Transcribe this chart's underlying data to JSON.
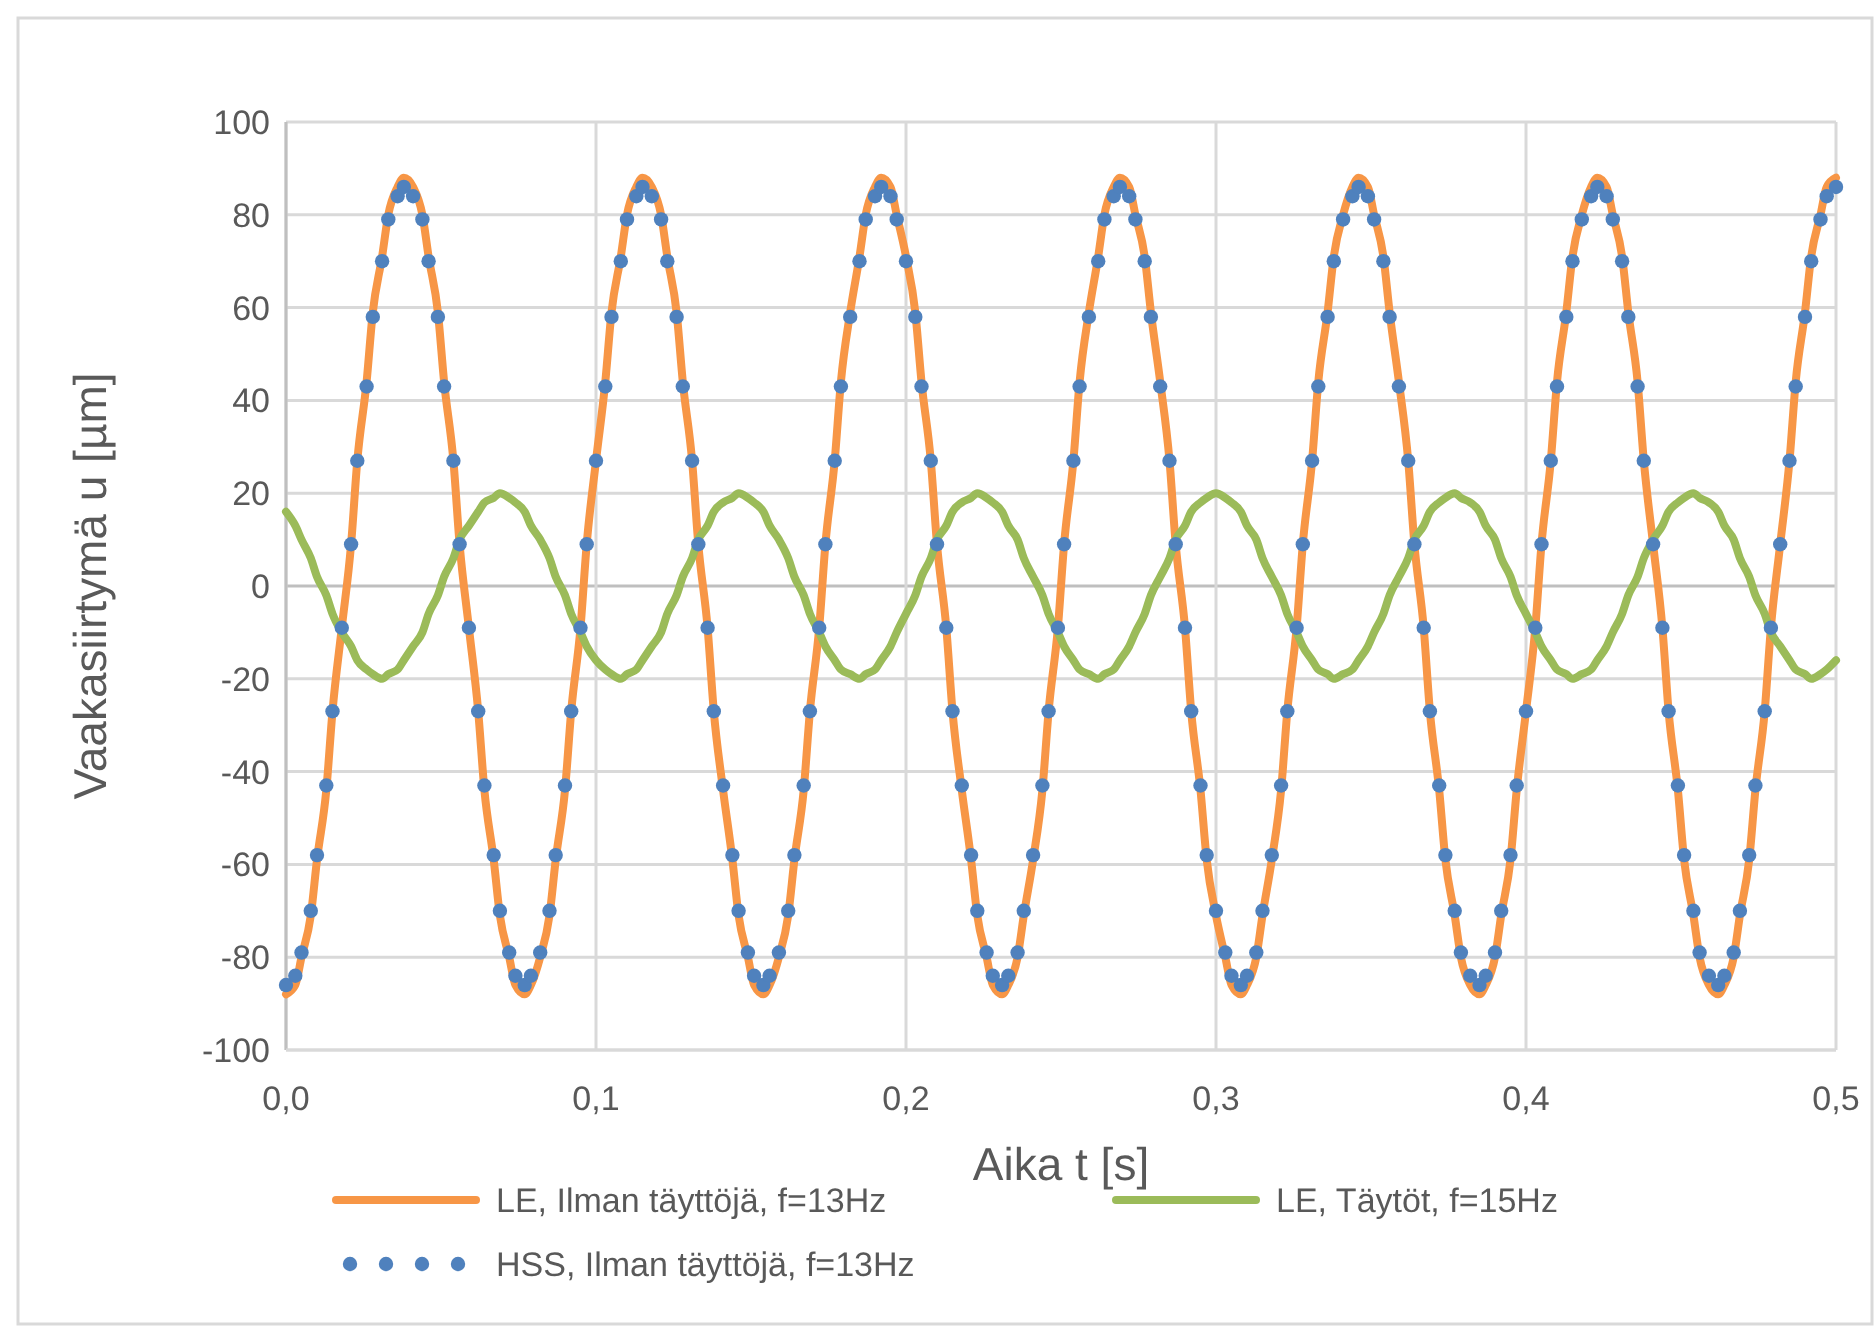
{
  "chart_data": {
    "type": "line",
    "xlabel": "Aika t [s]",
    "ylabel": "Vaakasiirtymä u [µm]",
    "xlim": [
      0,
      0.5
    ],
    "ylim": [
      -100,
      100
    ],
    "xticks": [
      {
        "value": 0,
        "label": "0,0"
      },
      {
        "value": 0.1,
        "label": "0,1"
      },
      {
        "value": 0.2,
        "label": "0,2"
      },
      {
        "value": 0.3,
        "label": "0,3"
      },
      {
        "value": 0.4,
        "label": "0,4"
      },
      {
        "value": 0.5,
        "label": "0,5"
      }
    ],
    "yticks": [
      -100,
      -80,
      -60,
      -40,
      -20,
      0,
      20,
      40,
      60,
      80,
      100
    ],
    "grid": true,
    "legend": "bottom",
    "line_style": "solid",
    "x": [
      0,
      0.003,
      0.005,
      0.008,
      0.01,
      0.013,
      0.015,
      0.018,
      0.021,
      0.023,
      0.026,
      0.028,
      0.031,
      0.033,
      0.036,
      0.038,
      0.041,
      0.044,
      0.046,
      0.049,
      0.051,
      0.054,
      0.056,
      0.059,
      0.062,
      0.064,
      0.067,
      0.069,
      0.072,
      0.074,
      0.077,
      0.079,
      0.082,
      0.085,
      0.087,
      0.09,
      0.092,
      0.095,
      0.097,
      0.1,
      0.103,
      0.105,
      0.108,
      0.11,
      0.113,
      0.115,
      0.118,
      0.121,
      0.123,
      0.126,
      0.128,
      0.131,
      0.133,
      0.136,
      0.138,
      0.141,
      0.144,
      0.146,
      0.149,
      0.151,
      0.154,
      0.156,
      0.159,
      0.162,
      0.164,
      0.167,
      0.169,
      0.172,
      0.174,
      0.177,
      0.179,
      0.182,
      0.185,
      0.187,
      0.19,
      0.192,
      0.195,
      0.197,
      0.2,
      0.203,
      0.205,
      0.208,
      0.21,
      0.213,
      0.215,
      0.218,
      0.221,
      0.223,
      0.226,
      0.228,
      0.231,
      0.233,
      0.236,
      0.238,
      0.241,
      0.244,
      0.246,
      0.249,
      0.251,
      0.254,
      0.256,
      0.259,
      0.262,
      0.264,
      0.267,
      0.269,
      0.272,
      0.274,
      0.277,
      0.279,
      0.282,
      0.285,
      0.287,
      0.29,
      0.292,
      0.295,
      0.297,
      0.3,
      0.303,
      0.305,
      0.308,
      0.31,
      0.313,
      0.315,
      0.318,
      0.321,
      0.323,
      0.326,
      0.328,
      0.331,
      0.333,
      0.336,
      0.338,
      0.341,
      0.344,
      0.346,
      0.349,
      0.351,
      0.354,
      0.356,
      0.359,
      0.362,
      0.364,
      0.367,
      0.369,
      0.372,
      0.374,
      0.377,
      0.379,
      0.382,
      0.385,
      0.387,
      0.39,
      0.392,
      0.395,
      0.397,
      0.4,
      0.403,
      0.405,
      0.408,
      0.41,
      0.413,
      0.415,
      0.418,
      0.421,
      0.423,
      0.426,
      0.428,
      0.431,
      0.433,
      0.436,
      0.438,
      0.441,
      0.444,
      0.446,
      0.449,
      0.451,
      0.454,
      0.456,
      0.459,
      0.462,
      0.464,
      0.467,
      0.469,
      0.472,
      0.474,
      0.477,
      0.479,
      0.482,
      0.485,
      0.487,
      0.49,
      0.492,
      0.495,
      0.497,
      0.5
    ],
    "series": [
      {
        "name": "LE, Ilman täyttöjä, f=13Hz",
        "color": "#f79646",
        "marker": "none",
        "values": [
          -88,
          -86,
          -80,
          -71,
          -59,
          -44,
          -27,
          -9,
          9,
          27,
          44,
          59,
          71,
          80,
          86,
          88,
          86,
          80,
          71,
          59,
          44,
          27,
          9,
          -9,
          -27,
          -44,
          -59,
          -71,
          -80,
          -86,
          -88,
          -86,
          -80,
          -71,
          -59,
          -44,
          -27,
          -9,
          9,
          27,
          44,
          59,
          71,
          80,
          86,
          88,
          86,
          80,
          71,
          59,
          44,
          27,
          9,
          -9,
          -27,
          -44,
          -59,
          -71,
          -80,
          -86,
          -88,
          -86,
          -80,
          -71,
          -59,
          -44,
          -27,
          -9,
          9,
          27,
          44,
          59,
          71,
          80,
          86,
          88,
          86,
          80,
          71,
          59,
          44,
          27,
          9,
          -9,
          -27,
          -44,
          -59,
          -71,
          -80,
          -86,
          -88,
          -86,
          -80,
          -71,
          -59,
          -44,
          -27,
          -9,
          9,
          27,
          44,
          59,
          71,
          80,
          86,
          88,
          86,
          80,
          71,
          59,
          44,
          27,
          9,
          -9,
          -27,
          -44,
          -59,
          -71,
          -80,
          -86,
          -88,
          -86,
          -80,
          -71,
          -59,
          -44,
          -27,
          -9,
          9,
          27,
          44,
          59,
          71,
          80,
          86,
          88,
          86,
          80,
          71,
          59,
          44,
          27,
          9,
          -9,
          -27,
          -44,
          -59,
          -71,
          -80,
          -86,
          -88,
          -86,
          -80,
          -71,
          -59,
          -44,
          -27,
          -9,
          9,
          27,
          44,
          59,
          71,
          80,
          86,
          88,
          86,
          80,
          71,
          59,
          44,
          27,
          9,
          -9,
          -27,
          -44,
          -59,
          -71,
          -80,
          -86,
          -88,
          -86,
          -80,
          -71,
          -59,
          -44,
          -27,
          -9,
          9,
          27,
          44,
          59,
          71,
          80,
          86,
          88
        ]
      },
      {
        "name": "LE, Täytöt, f=15Hz",
        "color": "#9bbb59",
        "marker": "none",
        "values": [
          16,
          13,
          10,
          6,
          2,
          -2,
          -6,
          -10,
          -13,
          -16,
          -18,
          -19,
          -20,
          -19,
          -18,
          -16,
          -13,
          -10,
          -6,
          -2,
          2,
          6,
          10,
          13,
          16,
          18,
          19,
          20,
          19,
          18,
          16,
          13,
          10,
          6,
          2,
          -2,
          -6,
          -10,
          -13,
          -16,
          -18,
          -19,
          -20,
          -19,
          -18,
          -16,
          -13,
          -10,
          -6,
          -2,
          2,
          6,
          10,
          13,
          16,
          18,
          19,
          20,
          19,
          18,
          16,
          13,
          10,
          6,
          2,
          -2,
          -6,
          -10,
          -13,
          -16,
          -18,
          -19,
          -20,
          -19,
          -18,
          -16,
          -13,
          -10,
          -6,
          -2,
          2,
          6,
          10,
          13,
          16,
          18,
          19,
          20,
          19,
          18,
          16,
          13,
          10,
          6,
          2,
          -2,
          -6,
          -10,
          -13,
          -16,
          -18,
          -19,
          -20,
          -19,
          -18,
          -16,
          -13,
          -10,
          -6,
          -2,
          2,
          6,
          10,
          13,
          16,
          18,
          19,
          20,
          19,
          18,
          16,
          13,
          10,
          6,
          2,
          -2,
          -6,
          -10,
          -13,
          -16,
          -18,
          -19,
          -20,
          -19,
          -18,
          -16,
          -13,
          -10,
          -6,
          -2,
          2,
          6,
          10,
          13,
          16,
          18,
          19,
          20,
          19,
          18,
          16,
          13,
          10,
          6,
          2,
          -2,
          -6,
          -10,
          -13,
          -16,
          -18,
          -19,
          -20,
          -19,
          -18,
          -16,
          -13,
          -10,
          -6,
          -2,
          2,
          6,
          10,
          13,
          16,
          18,
          19,
          20,
          19,
          18,
          16,
          13,
          10,
          6,
          2,
          -2,
          -6,
          -10,
          -13,
          -16,
          -18,
          -19,
          -20,
          -19,
          -18,
          -16
        ]
      },
      {
        "name": "HSS, Ilman täyttöjä, f=13Hz",
        "type": "scatter",
        "color": "#4f81bd",
        "marker": "circle",
        "values": [
          -86,
          -84,
          -79,
          -70,
          -58,
          -43,
          -27,
          -9,
          9,
          27,
          43,
          58,
          70,
          79,
          84,
          86,
          84,
          79,
          70,
          58,
          43,
          27,
          9,
          -9,
          -27,
          -43,
          -58,
          -70,
          -79,
          -84,
          -86,
          -84,
          -79,
          -70,
          -58,
          -43,
          -27,
          -9,
          9,
          27,
          43,
          58,
          70,
          79,
          84,
          86,
          84,
          79,
          70,
          58,
          43,
          27,
          9,
          -9,
          -27,
          -43,
          -58,
          -70,
          -79,
          -84,
          -86,
          -84,
          -79,
          -70,
          -58,
          -43,
          -27,
          -9,
          9,
          27,
          43,
          58,
          70,
          79,
          84,
          86,
          84,
          79,
          70,
          58,
          43,
          27,
          9,
          -9,
          -27,
          -43,
          -58,
          -70,
          -79,
          -84,
          -86,
          -84,
          -79,
          -70,
          -58,
          -43,
          -27,
          -9,
          9,
          27,
          43,
          58,
          70,
          79,
          84,
          86,
          84,
          79,
          70,
          58,
          43,
          27,
          9,
          -9,
          -27,
          -43,
          -58,
          -70,
          -79,
          -84,
          -86,
          -84,
          -79,
          -70,
          -58,
          -43,
          -27,
          -9,
          9,
          27,
          43,
          58,
          70,
          79,
          84,
          86,
          84,
          79,
          70,
          58,
          43,
          27,
          9,
          -9,
          -27,
          -43,
          -58,
          -70,
          -79,
          -84,
          -86,
          -84,
          -79,
          -70,
          -58,
          -43,
          -27,
          -9,
          9,
          27,
          43,
          58,
          70,
          79,
          84,
          86,
          84,
          79,
          70,
          58,
          43,
          27,
          9,
          -9,
          -27,
          -43,
          -58,
          -70,
          -79,
          -84,
          -86,
          -84,
          -79,
          -70,
          -58,
          -43,
          -27,
          -9,
          9,
          27,
          43,
          58,
          70,
          79,
          84,
          86
        ]
      }
    ]
  }
}
